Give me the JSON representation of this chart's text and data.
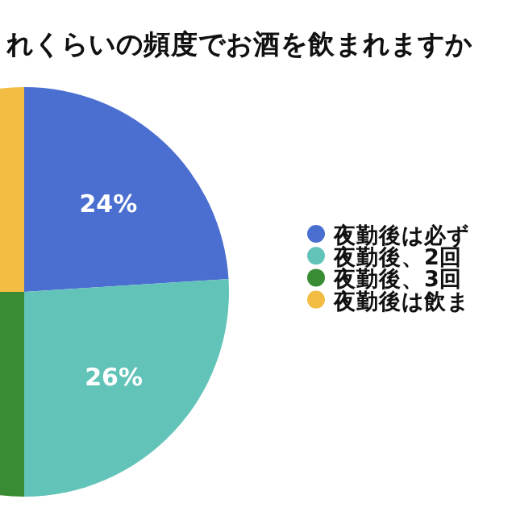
{
  "chart_data": {
    "type": "pie",
    "title": "れくらいの頻度でお酒を飲まれますか",
    "categories": [
      "夜勤後は必ず",
      "夜勤後、2回",
      "夜勤後、3回",
      "夜勤後は飲ま"
    ],
    "values": [
      24,
      26,
      25,
      25
    ],
    "colors": [
      "#4a6fd0",
      "#62c3b8",
      "#3a8c34",
      "#f2bd42"
    ],
    "value_labels": [
      "24%",
      "26%",
      null,
      null
    ],
    "legend": "right"
  }
}
